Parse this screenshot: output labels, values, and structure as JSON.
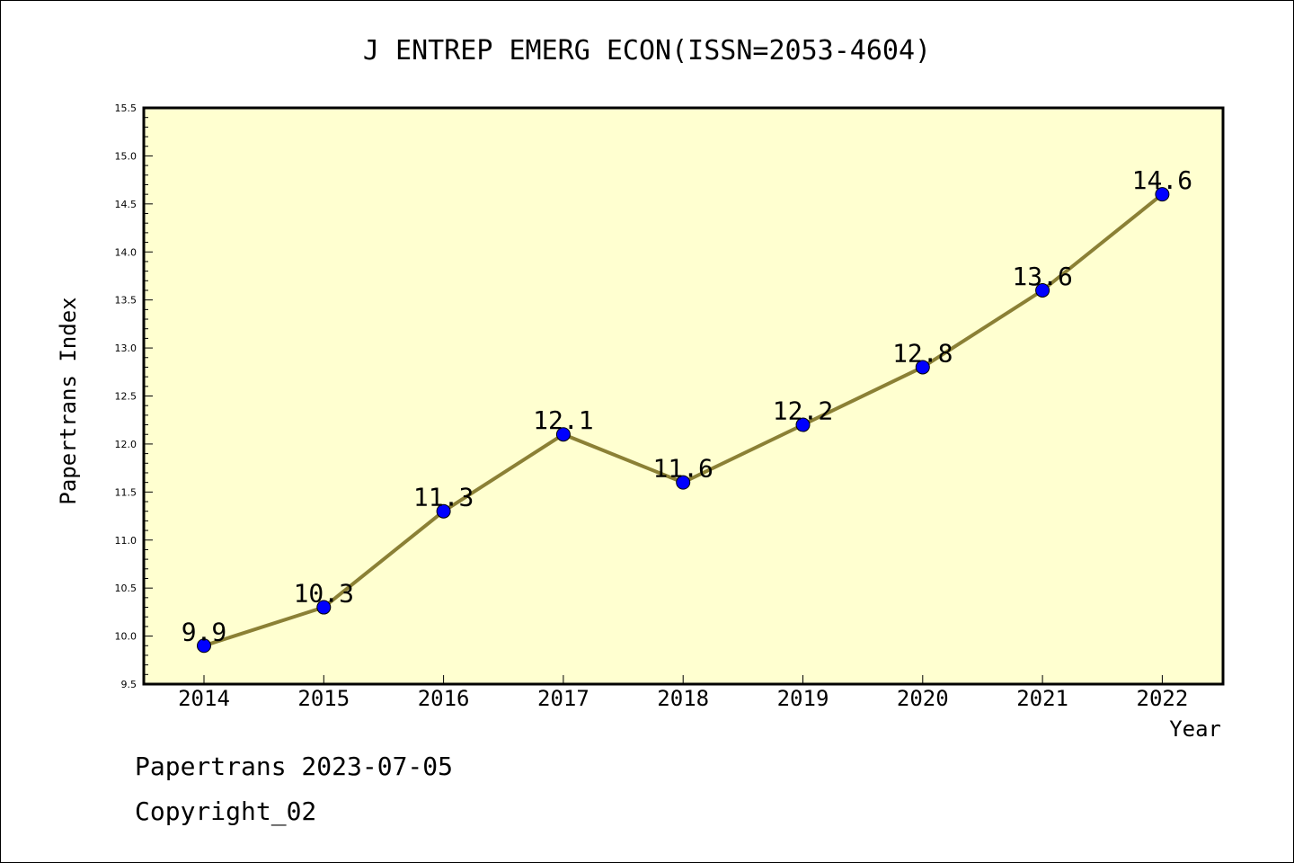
{
  "chart_data": {
    "type": "line",
    "title": "J ENTREP EMERG ECON(ISSN=2053-4604)",
    "xlabel": "Year",
    "ylabel": "Papertrans Index",
    "categories": [
      "2014",
      "2015",
      "2016",
      "2017",
      "2018",
      "2019",
      "2020",
      "2021",
      "2022"
    ],
    "values": [
      9.9,
      10.3,
      11.3,
      12.1,
      11.6,
      12.2,
      12.8,
      13.6,
      14.6
    ],
    "data_labels": [
      "9.9",
      "10.3",
      "11.3",
      "12.1",
      "11.6",
      "12.2",
      "12.8",
      "13.6",
      "14.6"
    ],
    "ylim": [
      9.5,
      15.5
    ],
    "yticks": [
      "9.5",
      "10.0",
      "10.5",
      "11.0",
      "11.5",
      "12.0",
      "12.5",
      "13.0",
      "13.5",
      "14.0",
      "14.5",
      "15.0",
      "15.5"
    ],
    "grid": false,
    "colors": {
      "plot_background": "#ffffd0",
      "line": "#8b8035",
      "marker": "#0000ff"
    }
  },
  "footer": {
    "line1": "Papertrans 2023-07-05",
    "line2": "Copyright_02"
  }
}
